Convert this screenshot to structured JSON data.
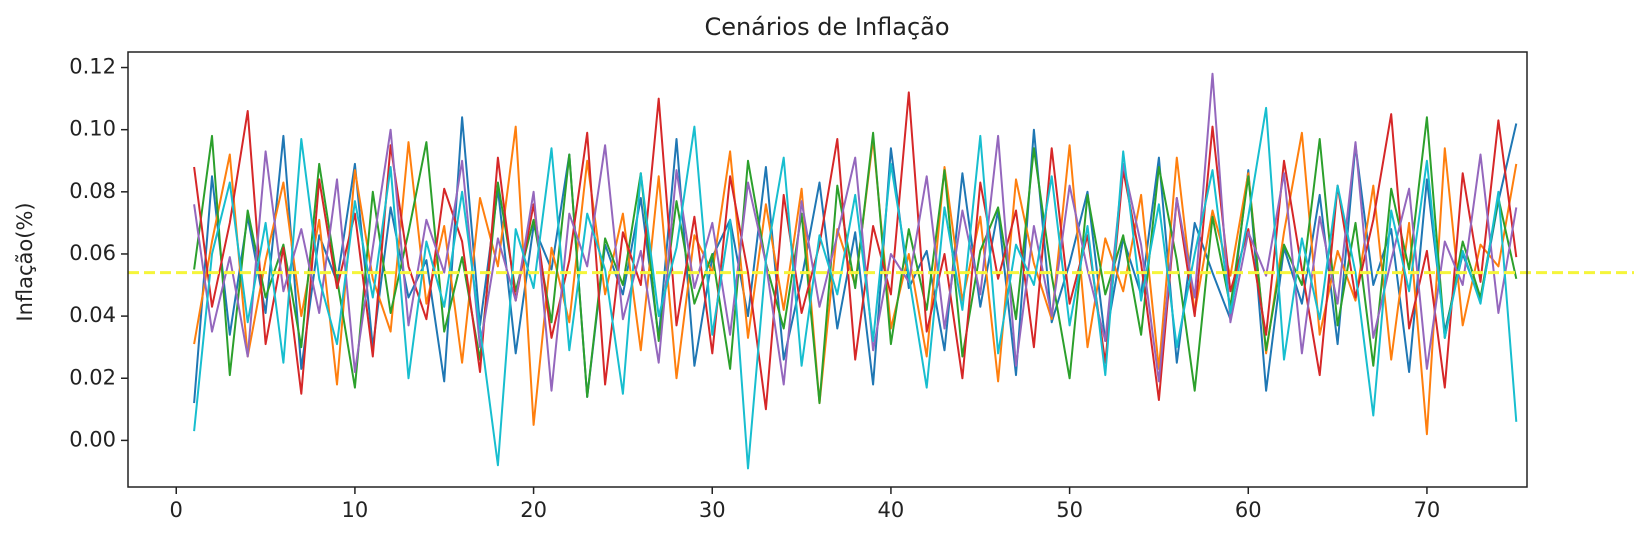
{
  "chart_data": {
    "type": "line",
    "title": "Cenários de Inflação",
    "y_label": "Inflação(%)",
    "x": [
      1,
      2,
      3,
      4,
      5,
      6,
      7,
      8,
      9,
      10,
      11,
      12,
      13,
      14,
      15,
      16,
      17,
      18,
      19,
      20,
      21,
      22,
      23,
      24,
      25,
      26,
      27,
      28,
      29,
      30,
      31,
      32,
      33,
      34,
      35,
      36,
      37,
      38,
      39,
      40,
      41,
      42,
      43,
      44,
      45,
      46,
      47,
      48,
      49,
      50,
      51,
      52,
      53,
      54,
      55,
      56,
      57,
      58,
      59,
      60,
      61,
      62,
      63,
      64,
      65,
      66,
      67,
      68,
      69,
      70,
      71,
      72,
      73,
      74,
      75
    ],
    "xlim": [
      -2.7,
      75.6
    ],
    "xticks": [
      0,
      10,
      20,
      30,
      40,
      50,
      60,
      70
    ],
    "ylim": [
      -0.015,
      0.125
    ],
    "yticks": [
      {
        "value": 0,
        "label": "0.00"
      },
      0.02,
      0.04,
      0.06,
      0.08,
      {
        "value": 0.1,
        "label": "0.10"
      },
      0.12
    ],
    "grid": false,
    "reference_line": {
      "value": 0.054,
      "color": "#f5f53a",
      "style": "dashed"
    },
    "series": [
      {
        "color": "#1f77b4",
        "values": [
          0.012,
          0.085,
          0.034,
          0.072,
          0.041,
          0.098,
          0.023,
          0.066,
          0.051,
          0.089,
          0.03,
          0.075,
          0.046,
          0.058,
          0.019,
          0.104,
          0.037,
          0.081,
          0.028,
          0.069,
          0.055,
          0.092,
          0.014,
          0.063,
          0.047,
          0.078,
          0.033,
          0.097,
          0.024,
          0.059,
          0.071,
          0.04,
          0.088,
          0.026,
          0.052,
          0.083,
          0.036,
          0.067,
          0.018,
          0.094,
          0.049,
          0.061,
          0.029,
          0.086,
          0.043,
          0.074,
          0.021,
          0.1,
          0.038,
          0.057,
          0.08,
          0.032,
          0.065,
          0.047,
          0.091,
          0.025,
          0.07,
          0.054,
          0.039,
          0.087,
          0.016,
          0.062,
          0.044,
          0.079,
          0.031,
          0.095,
          0.05,
          0.068,
          0.022,
          0.084,
          0.035,
          0.06,
          0.045,
          0.077,
          0.102
        ]
      },
      {
        "color": "#ff7f0e",
        "values": [
          0.031,
          0.064,
          0.092,
          0.027,
          0.058,
          0.083,
          0.04,
          0.071,
          0.018,
          0.087,
          0.052,
          0.035,
          0.096,
          0.044,
          0.069,
          0.025,
          0.078,
          0.056,
          0.101,
          0.005,
          0.062,
          0.038,
          0.09,
          0.047,
          0.073,
          0.029,
          0.085,
          0.02,
          0.066,
          0.054,
          0.093,
          0.033,
          0.076,
          0.042,
          0.081,
          0.012,
          0.068,
          0.05,
          0.097,
          0.036,
          0.06,
          0.027,
          0.088,
          0.045,
          0.072,
          0.019,
          0.084,
          0.057,
          0.039,
          0.095,
          0.03,
          0.065,
          0.048,
          0.079,
          0.023,
          0.091,
          0.041,
          0.074,
          0.053,
          0.086,
          0.028,
          0.067,
          0.099,
          0.034,
          0.061,
          0.045,
          0.082,
          0.026,
          0.07,
          0.002,
          0.094,
          0.037,
          0.063,
          0.056,
          0.089
        ]
      },
      {
        "color": "#2ca02c",
        "values": [
          0.055,
          0.098,
          0.021,
          0.074,
          0.046,
          0.063,
          0.03,
          0.089,
          0.052,
          0.017,
          0.08,
          0.041,
          0.067,
          0.096,
          0.035,
          0.059,
          0.026,
          0.083,
          0.048,
          0.071,
          0.038,
          0.092,
          0.014,
          0.065,
          0.05,
          0.086,
          0.032,
          0.077,
          0.044,
          0.06,
          0.023,
          0.09,
          0.057,
          0.036,
          0.073,
          0.012,
          0.082,
          0.049,
          0.099,
          0.031,
          0.068,
          0.042,
          0.087,
          0.027,
          0.061,
          0.075,
          0.039,
          0.094,
          0.053,
          0.02,
          0.079,
          0.047,
          0.066,
          0.034,
          0.088,
          0.058,
          0.016,
          0.072,
          0.043,
          0.085,
          0.029,
          0.063,
          0.05,
          0.097,
          0.037,
          0.07,
          0.024,
          0.081,
          0.055,
          0.104,
          0.033,
          0.064,
          0.046,
          0.078,
          0.052
        ]
      },
      {
        "color": "#d62728",
        "values": [
          0.088,
          0.043,
          0.07,
          0.106,
          0.031,
          0.062,
          0.015,
          0.084,
          0.049,
          0.073,
          0.027,
          0.095,
          0.056,
          0.039,
          0.081,
          0.064,
          0.022,
          0.091,
          0.045,
          0.076,
          0.033,
          0.058,
          0.099,
          0.018,
          0.067,
          0.05,
          0.11,
          0.037,
          0.072,
          0.028,
          0.085,
          0.054,
          0.01,
          0.079,
          0.041,
          0.063,
          0.097,
          0.026,
          0.069,
          0.047,
          0.112,
          0.035,
          0.06,
          0.02,
          0.083,
          0.052,
          0.074,
          0.03,
          0.094,
          0.044,
          0.066,
          0.025,
          0.087,
          0.057,
          0.013,
          0.078,
          0.04,
          0.101,
          0.048,
          0.068,
          0.034,
          0.09,
          0.055,
          0.021,
          0.082,
          0.046,
          0.071,
          0.105,
          0.036,
          0.061,
          0.017,
          0.086,
          0.051,
          0.103,
          0.059
        ]
      },
      {
        "color": "#9467bd",
        "values": [
          0.076,
          0.035,
          0.059,
          0.027,
          0.093,
          0.048,
          0.068,
          0.041,
          0.084,
          0.022,
          0.062,
          0.1,
          0.037,
          0.071,
          0.054,
          0.09,
          0.03,
          0.065,
          0.045,
          0.08,
          0.016,
          0.073,
          0.056,
          0.095,
          0.039,
          0.061,
          0.025,
          0.087,
          0.049,
          0.07,
          0.034,
          0.083,
          0.057,
          0.018,
          0.077,
          0.043,
          0.066,
          0.091,
          0.029,
          0.06,
          0.051,
          0.085,
          0.036,
          0.074,
          0.047,
          0.098,
          0.024,
          0.069,
          0.04,
          0.082,
          0.055,
          0.032,
          0.089,
          0.063,
          0.019,
          0.078,
          0.046,
          0.118,
          0.038,
          0.067,
          0.053,
          0.086,
          0.028,
          0.072,
          0.044,
          0.096,
          0.033,
          0.058,
          0.081,
          0.023,
          0.064,
          0.05,
          0.092,
          0.041,
          0.075
        ]
      },
      {
        "color": "#17becf",
        "values": [
          0.003,
          0.06,
          0.083,
          0.038,
          0.07,
          0.025,
          0.097,
          0.052,
          0.031,
          0.077,
          0.046,
          0.088,
          0.02,
          0.064,
          0.043,
          0.08,
          0.036,
          -0.008,
          0.068,
          0.049,
          0.094,
          0.029,
          0.073,
          0.055,
          0.015,
          0.086,
          0.04,
          0.062,
          0.101,
          0.034,
          0.071,
          -0.009,
          0.058,
          0.091,
          0.024,
          0.066,
          0.047,
          0.079,
          0.032,
          0.089,
          0.053,
          0.017,
          0.075,
          0.042,
          0.098,
          0.028,
          0.063,
          0.05,
          0.085,
          0.037,
          0.069,
          0.021,
          0.093,
          0.045,
          0.076,
          0.03,
          0.06,
          0.087,
          0.041,
          0.072,
          0.107,
          0.026,
          0.065,
          0.039,
          0.082,
          0.054,
          0.008,
          0.074,
          0.048,
          0.09,
          0.033,
          0.061,
          0.044,
          0.08,
          0.006
        ]
      }
    ]
  }
}
